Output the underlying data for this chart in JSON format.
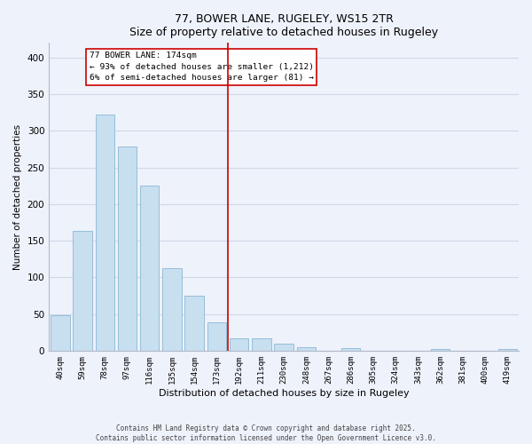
{
  "title": "77, BOWER LANE, RUGELEY, WS15 2TR",
  "subtitle": "Size of property relative to detached houses in Rugeley",
  "xlabel": "Distribution of detached houses by size in Rugeley",
  "ylabel": "Number of detached properties",
  "bar_labels": [
    "40sqm",
    "59sqm",
    "78sqm",
    "97sqm",
    "116sqm",
    "135sqm",
    "154sqm",
    "173sqm",
    "192sqm",
    "211sqm",
    "230sqm",
    "248sqm",
    "267sqm",
    "286sqm",
    "305sqm",
    "324sqm",
    "343sqm",
    "362sqm",
    "381sqm",
    "400sqm",
    "419sqm"
  ],
  "bar_values": [
    48,
    163,
    322,
    279,
    225,
    113,
    75,
    38,
    17,
    17,
    10,
    5,
    0,
    3,
    0,
    0,
    0,
    2,
    0,
    0,
    2
  ],
  "bar_color": "#c8dff0",
  "bar_edge_color": "#8ab8d4",
  "ylim": [
    0,
    420
  ],
  "yticks": [
    0,
    50,
    100,
    150,
    200,
    250,
    300,
    350,
    400
  ],
  "marker_index": 7,
  "annotation_title": "77 BOWER LANE: 174sqm",
  "annotation_line1": "← 93% of detached houses are smaller (1,212)",
  "annotation_line2": "6% of semi-detached houses are larger (81) →",
  "marker_color": "#cc0000",
  "grid_color": "#d0d8e8",
  "bg_color": "#eef2fb",
  "footer_line1": "Contains HM Land Registry data © Crown copyright and database right 2025.",
  "footer_line2": "Contains public sector information licensed under the Open Government Licence v3.0."
}
